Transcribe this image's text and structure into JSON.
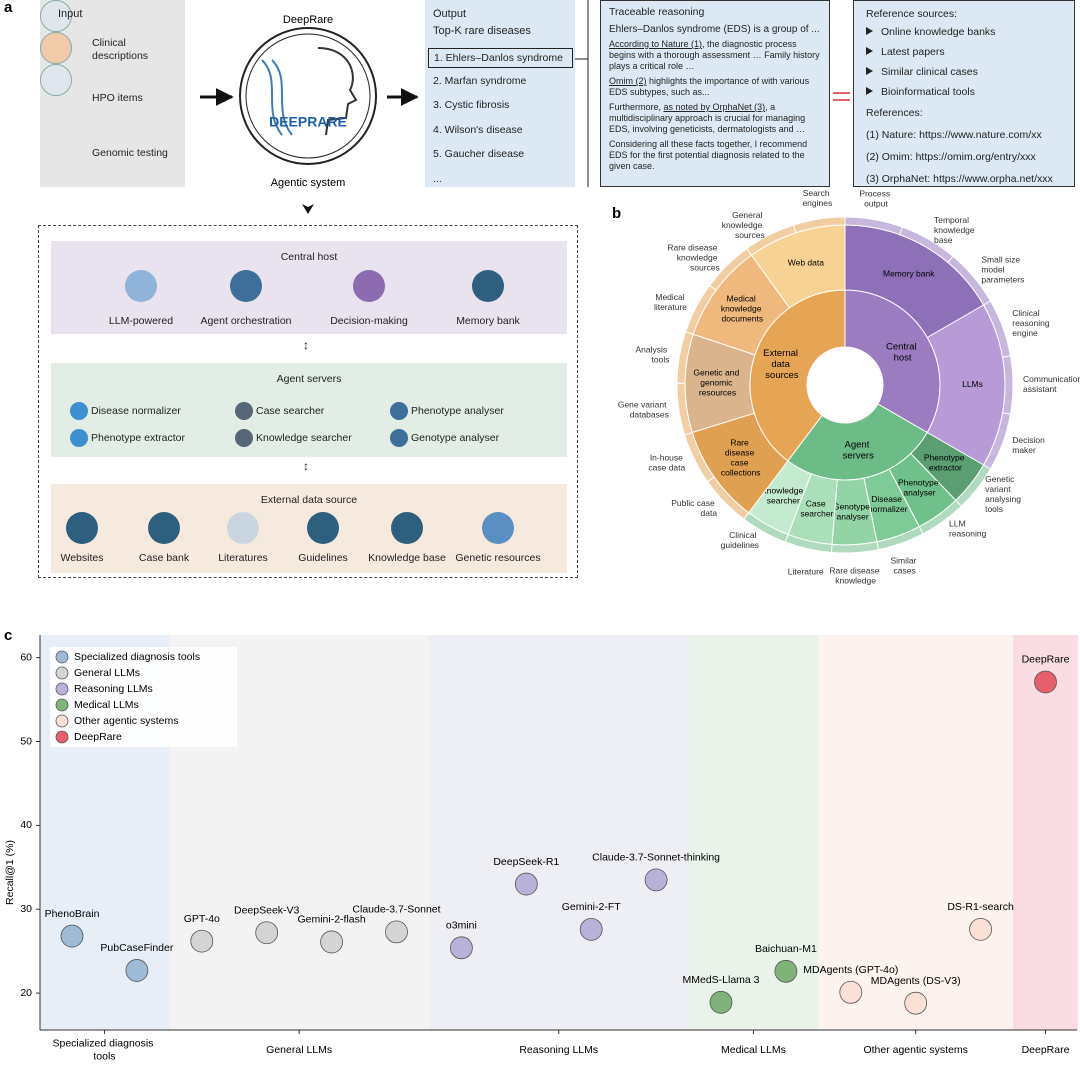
{
  "panel_labels": [
    "a",
    "b",
    "c"
  ],
  "panel_a": {
    "input": {
      "title": "Input",
      "items": [
        "Clinical descriptions",
        "HPO items",
        "Genomic testing"
      ]
    },
    "system": {
      "title": "DeepRare",
      "logo": "DEEPRARE",
      "caption": "Agentic system"
    },
    "output": {
      "title": "Output",
      "subtitle": "Top-K rare diseases",
      "items": [
        "1. Ehlers–Danlos syndrome",
        "2. Marfan syndrome",
        "3. Cystic fibrosis",
        "4. Wilson's disease",
        "5. Gaucher disease",
        "..."
      ]
    },
    "reasoning": {
      "title": "Traceable reasoning",
      "paragraphs": [
        [
          {
            "text": "Ehlers–Danlos syndrome (EDS) is a group of ..."
          }
        ],
        [
          {
            "text": "According to Nature (1)",
            "underline": true
          },
          {
            "text": ", the diagnostic process begins with a thorough assessment … Family history plays a critical role …"
          }
        ],
        [
          {
            "text": "Omim (2)",
            "underline": true
          },
          {
            "text": " highlights the importance of with various EDS subtypes, such as..."
          }
        ],
        [
          {
            "text": "Furthermore, "
          },
          {
            "text": "as noted by OrphaNet (3)",
            "underline": true
          },
          {
            "text": ", a multidisciplinary approach is crucial for managing EDS, involving geneticists, dermatologists and …"
          }
        ],
        [
          {
            "text": "Considering all these facts together, I recommend EDS for the first potential diagnosis related to the given case."
          }
        ]
      ]
    },
    "references": {
      "title": "Reference sources:",
      "sources": [
        "Online knowledge banks",
        "Latest papers",
        "Similar clinical cases",
        "Bioinformatical tools"
      ],
      "subtitle": "References:",
      "items": [
        "(1) Nature: https://www.nature.com/xx",
        "(2) Omim: https://omim.org/entry/xxx",
        "(3) OrphaNet: https://www.orpha.net/xxx"
      ]
    },
    "architecture": {
      "central": {
        "title": "Central host",
        "items": [
          "LLM-powered",
          "Agent orchestration",
          "Decision-making",
          "Memory bank"
        ]
      },
      "servers": {
        "title": "Agent servers",
        "items": [
          "Disease normalizer",
          "Case searcher",
          "Phenotype analyser",
          "Phenotype extractor",
          "Knowledge searcher",
          "Genotype analyser"
        ]
      },
      "external": {
        "title": "External data source",
        "items": [
          "Websites",
          "Case bank",
          "Literatures",
          "Guidelines",
          "Knowledge base",
          "Genetic resources"
        ]
      }
    }
  },
  "panel_b": {
    "groups": [
      {
        "name": "Central host",
        "color": "#9b7cc0",
        "children": [
          {
            "name": "Memory bank",
            "color": "#8e70b8"
          },
          {
            "name": "LLMs",
            "color": "#b89ad6"
          }
        ],
        "outer": [
          "Process output",
          "Temporal knowledge base",
          "Small size model parameters",
          "Clinical reasoning engine",
          "Communication assistant",
          "Decision maker"
        ]
      },
      {
        "name": "Agent servers",
        "color": "#6dbb87",
        "children": [
          {
            "name": "Phenotype extractor",
            "color": "#5b9e72"
          },
          {
            "name": "Phenotype analyser",
            "color": "#6fc08a"
          },
          {
            "name": "Disease normalizer",
            "color": "#7fcb97"
          },
          {
            "name": "Genotype analyser",
            "color": "#93d4a7"
          },
          {
            "name": "Case searcher",
            "color": "#aadfba"
          },
          {
            "name": "Knowledge searcher",
            "color": "#c4ebcf"
          }
        ],
        "outer": [
          "Genetic variant analysing tools",
          "LLM reasoning",
          "Similar cases",
          "Rare disease knowledge",
          "Literature",
          "Clinical guidelines"
        ]
      },
      {
        "name": "External data sources",
        "color": "#e6a555",
        "children": [
          {
            "name": "Rare disease case collections",
            "color": "#dfa052"
          },
          {
            "name": "Genetic and genomic resources",
            "color": "#d9b48d"
          },
          {
            "name": "Medical knowledge documents",
            "color": "#efb87c"
          },
          {
            "name": "Web data",
            "color": "#f6d394"
          }
        ],
        "outer": [
          "Public case data",
          "In-house case data",
          "Gene variant databases",
          "Analysis tools",
          "Medical literature",
          "Rare disease knowledge sources",
          "General knowledge sources",
          "Search engines"
        ]
      }
    ]
  },
  "chart_data": {
    "type": "scatter",
    "ylabel": "Recall@1 (%)",
    "ylim": [
      15.6,
      62.7
    ],
    "yticks": [
      20,
      30,
      40,
      50,
      60
    ],
    "legend": "upper left",
    "series": [
      {
        "name": "Specialized diagnosis tools",
        "color": "#9dbbd6",
        "band_color": "#e7eef8",
        "labels": [
          "PhenoBrain",
          "PubCaseFinder"
        ],
        "values": [
          26.8,
          22.7
        ]
      },
      {
        "name": "General LLMs",
        "color": "#d4d4d4",
        "band_color": "#f3f3f3",
        "labels": [
          "GPT-4o",
          "DeepSeek-V3",
          "Gemini-2-flash",
          "Claude-3.7-Sonnet"
        ],
        "values": [
          26.2,
          27.2,
          26.1,
          27.3
        ]
      },
      {
        "name": "Reasoning LLMs",
        "color": "#b9b1d9",
        "band_color": "#eeeef5",
        "labels": [
          "o3mini",
          "DeepSeek-R1",
          "Gemini-2-FT",
          "Claude-3.7-Sonnet-thinking"
        ],
        "values": [
          25.4,
          33.0,
          27.6,
          33.5
        ]
      },
      {
        "name": "Medical LLMs",
        "color": "#7fb37a",
        "band_color": "#e9f3ea",
        "labels": [
          "MMedS-Llama 3",
          "Baichuan-M1"
        ],
        "values": [
          18.9,
          22.6
        ]
      },
      {
        "name": "Other agentic systems",
        "color": "#fbe1d5",
        "band_color": "#fdf3ee",
        "labels": [
          "MDAgents (GPT-4o)",
          "MDAgents (DS-V3)",
          "DS-R1-search"
        ],
        "values": [
          20.1,
          18.8,
          27.6
        ]
      },
      {
        "name": "DeepRare",
        "color": "#e5606a",
        "band_color": "#f9dde2",
        "labels": [
          "DeepRare"
        ],
        "values": [
          57.1
        ]
      }
    ]
  }
}
